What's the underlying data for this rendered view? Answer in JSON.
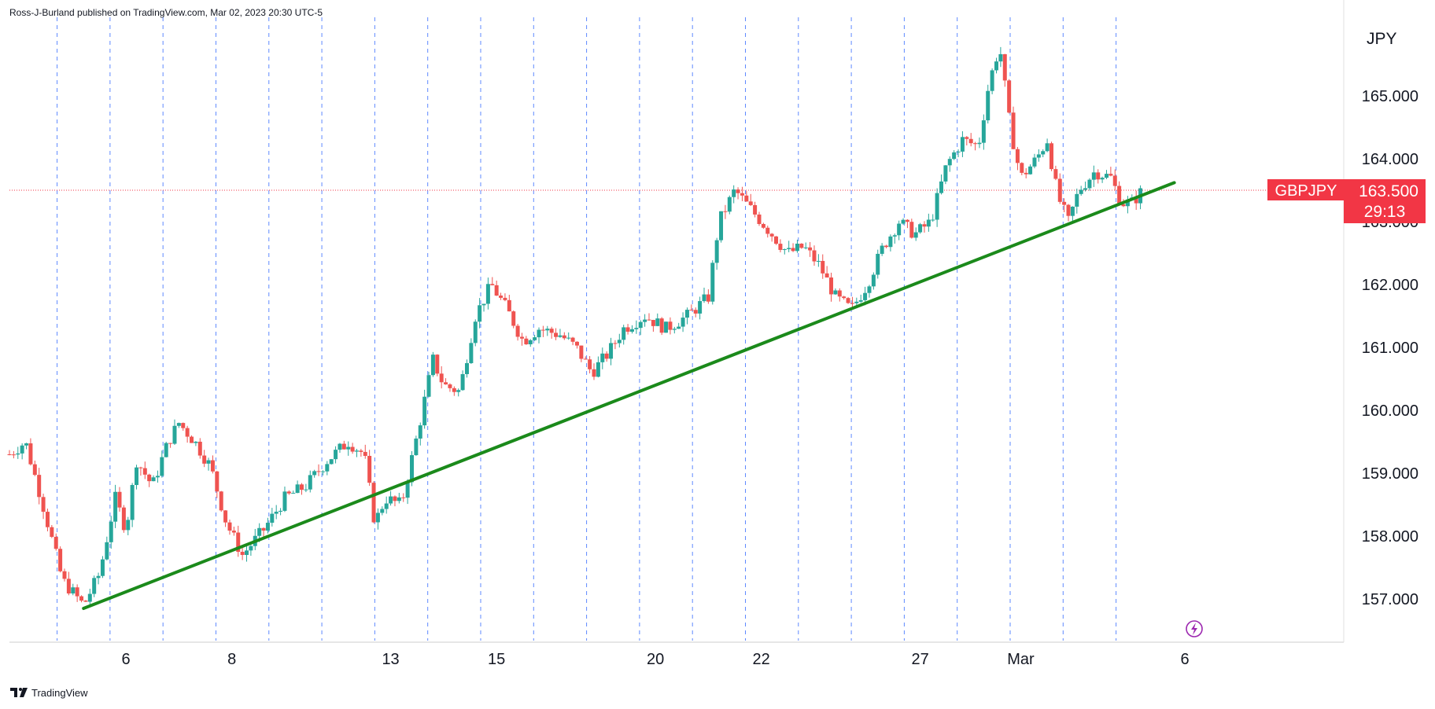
{
  "header": {
    "text": "Ross-J-Burland published on TradingView.com, Mar 02, 2023 20:30 UTC-5"
  },
  "footer": {
    "brand": "TradingView"
  },
  "price_tag": {
    "symbol": "GBPJPY",
    "price": "163.500",
    "countdown": "29:13",
    "color": "#f23645"
  },
  "colors": {
    "up": "#26a69a",
    "down": "#ef5350",
    "trendline": "#1b8a1b",
    "grid": "#2962ff"
  },
  "chart_data": {
    "type": "candlestick",
    "symbol": "GBPJPY",
    "currency_label": "JPY",
    "y_ticks": [
      "157.000",
      "158.000",
      "159.000",
      "160.000",
      "161.000",
      "162.000",
      "163.000",
      "164.000",
      "165.000"
    ],
    "ylim": [
      156.4,
      166.0
    ],
    "x_ticks": [
      "6",
      "8",
      "13",
      "15",
      "20",
      "22",
      "27",
      "Mar",
      "6"
    ],
    "last_price": 163.5,
    "close_path": [
      {
        "t": 0,
        "p": 159.3
      },
      {
        "t": 1.5,
        "p": 159.5
      },
      {
        "t": 3,
        "p": 158.6
      },
      {
        "t": 5,
        "p": 157.3
      },
      {
        "t": 7,
        "p": 156.9
      },
      {
        "t": 8.5,
        "p": 157.4
      },
      {
        "t": 10,
        "p": 158.6
      },
      {
        "t": 11,
        "p": 158.1
      },
      {
        "t": 12,
        "p": 159.2
      },
      {
        "t": 13.5,
        "p": 158.8
      },
      {
        "t": 15,
        "p": 159.5
      },
      {
        "t": 16,
        "p": 159.8
      },
      {
        "t": 17.5,
        "p": 159.5
      },
      {
        "t": 19,
        "p": 159.1
      },
      {
        "t": 20.5,
        "p": 158.2
      },
      {
        "t": 22,
        "p": 157.7
      },
      {
        "t": 24,
        "p": 158.1
      },
      {
        "t": 26,
        "p": 158.6
      },
      {
        "t": 28,
        "p": 158.8
      },
      {
        "t": 30,
        "p": 159.2
      },
      {
        "t": 32,
        "p": 159.5
      },
      {
        "t": 33.5,
        "p": 159.3
      },
      {
        "t": 34.5,
        "p": 158.2
      },
      {
        "t": 35.5,
        "p": 158.6
      },
      {
        "t": 37,
        "p": 158.5
      },
      {
        "t": 38.5,
        "p": 159.6
      },
      {
        "t": 40,
        "p": 160.8
      },
      {
        "t": 41,
        "p": 160.4
      },
      {
        "t": 42.5,
        "p": 160.3
      },
      {
        "t": 44,
        "p": 161.5
      },
      {
        "t": 45.5,
        "p": 162.0
      },
      {
        "t": 47,
        "p": 161.6
      },
      {
        "t": 48.5,
        "p": 161.1
      },
      {
        "t": 50,
        "p": 161.3
      },
      {
        "t": 52,
        "p": 161.2
      },
      {
        "t": 53.5,
        "p": 161.0
      },
      {
        "t": 55,
        "p": 160.6
      },
      {
        "t": 56.5,
        "p": 160.9
      },
      {
        "t": 58,
        "p": 161.3
      },
      {
        "t": 60,
        "p": 161.5
      },
      {
        "t": 62,
        "p": 161.3
      },
      {
        "t": 64,
        "p": 161.5
      },
      {
        "t": 66,
        "p": 161.8
      },
      {
        "t": 67,
        "p": 163.0
      },
      {
        "t": 68.5,
        "p": 163.5
      },
      {
        "t": 70,
        "p": 163.2
      },
      {
        "t": 72,
        "p": 162.8
      },
      {
        "t": 73.5,
        "p": 162.5
      },
      {
        "t": 75,
        "p": 162.6
      },
      {
        "t": 76.5,
        "p": 162.3
      },
      {
        "t": 78,
        "p": 161.8
      },
      {
        "t": 79.5,
        "p": 161.6
      },
      {
        "t": 81,
        "p": 162.0
      },
      {
        "t": 82.5,
        "p": 162.6
      },
      {
        "t": 84,
        "p": 163.0
      },
      {
        "t": 85.5,
        "p": 162.8
      },
      {
        "t": 87,
        "p": 163.0
      },
      {
        "t": 88.5,
        "p": 163.9
      },
      {
        "t": 90,
        "p": 164.3
      },
      {
        "t": 91.5,
        "p": 164.2
      },
      {
        "t": 92.5,
        "p": 165.2
      },
      {
        "t": 93.5,
        "p": 165.8
      },
      {
        "t": 94.5,
        "p": 164.5
      },
      {
        "t": 95.5,
        "p": 163.7
      },
      {
        "t": 97,
        "p": 164.0
      },
      {
        "t": 98,
        "p": 164.3
      },
      {
        "t": 99,
        "p": 163.4
      },
      {
        "t": 100,
        "p": 163.0
      },
      {
        "t": 101,
        "p": 163.5
      },
      {
        "t": 102.5,
        "p": 163.8
      },
      {
        "t": 104,
        "p": 163.7
      },
      {
        "t": 105,
        "p": 163.3
      },
      {
        "t": 106,
        "p": 163.3
      },
      {
        "t": 107,
        "p": 163.5
      }
    ],
    "trendline": {
      "start": {
        "t": 7,
        "p": 156.85
      },
      "end": {
        "t": 110,
        "p": 163.62
      }
    },
    "session_dividers_t": [
      4.5,
      9.5,
      14.5,
      19.5,
      24.5,
      29.5,
      34.5,
      39.5,
      44.5,
      49.5,
      54.5,
      59.5,
      64.5,
      69.5,
      74.5,
      79.5,
      84.5,
      89.5,
      94.5,
      99.5,
      104.5
    ],
    "x_tick_t": [
      11,
      21,
      36,
      46,
      61,
      71,
      86,
      95.5,
      111
    ],
    "t_range": [
      0,
      126
    ]
  }
}
